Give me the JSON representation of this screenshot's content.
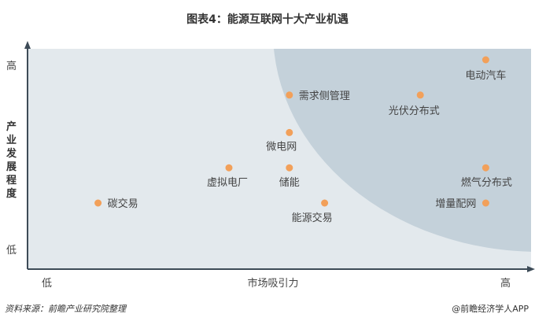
{
  "chart_data": {
    "type": "scatter",
    "title": "图表4：能源互联网十大产业机遇",
    "xlabel": "市场吸引力",
    "ylabel": "产业发展程度",
    "x_ticks": [
      "低",
      "高"
    ],
    "y_ticks": [
      "低",
      "高"
    ],
    "xlim": [
      0,
      100
    ],
    "ylim": [
      0,
      100
    ],
    "grid": false,
    "point_color": "#F2A05A",
    "background_color": "#E3E9ED",
    "highlight_region_color": "#C4D1DA",
    "points": [
      {
        "label": "电动汽车",
        "x": 91,
        "y": 95
      },
      {
        "label": "需求侧管理",
        "x": 52,
        "y": 79
      },
      {
        "label": "光伏分布式",
        "x": 78,
        "y": 79
      },
      {
        "label": "微电网",
        "x": 52,
        "y": 62
      },
      {
        "label": "虚拟电厂",
        "x": 40,
        "y": 46
      },
      {
        "label": "储能",
        "x": 52,
        "y": 46
      },
      {
        "label": "燃气分布式",
        "x": 91,
        "y": 46
      },
      {
        "label": "碳交易",
        "x": 14,
        "y": 30
      },
      {
        "label": "能源交易",
        "x": 59,
        "y": 30
      },
      {
        "label": "增量配网",
        "x": 91,
        "y": 30
      }
    ]
  },
  "source": "资料来源：前瞻产业研究院整理",
  "credit": "@前瞻经济学人APP",
  "watermark": "前瞻产业研究院"
}
